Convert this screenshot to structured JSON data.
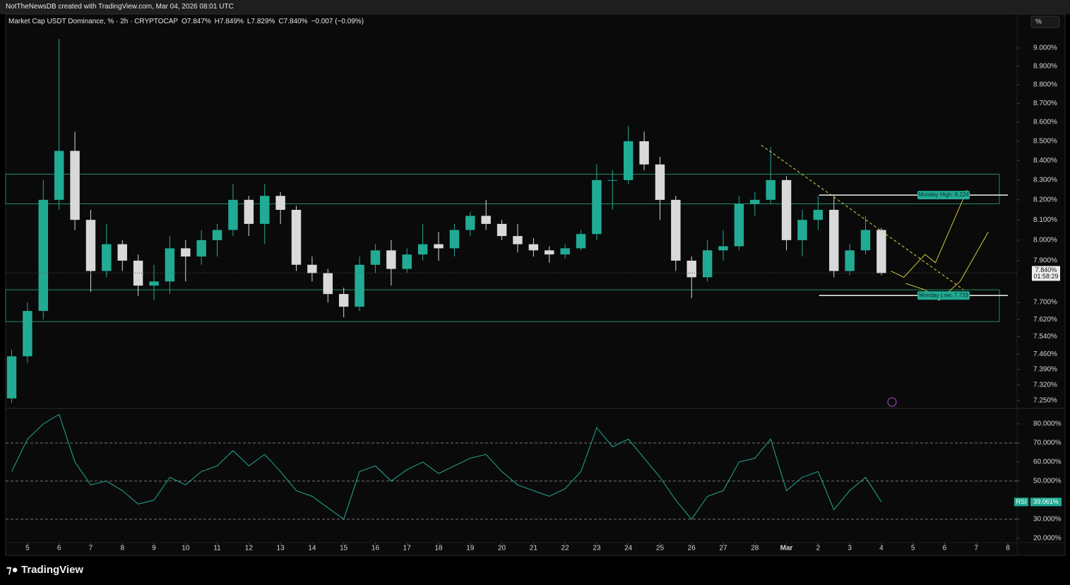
{
  "header": {
    "attribution": "NotTheNewsDB created with TradingView.com, Mar 04, 2026 08:01 UTC",
    "symbol": "Market Cap USDT Dominance, % · 2h · CRYPTOCAP",
    "open": "O7.847%",
    "high": "H7.849%",
    "low": "L7.829%",
    "close": "C7.840%",
    "change": "−0.007 (−0.09%)",
    "scale_unit": "%"
  },
  "footer": {
    "brand": "TradingView"
  },
  "chart_data": [
    {
      "type": "candlestick",
      "x": [
        4.5,
        5,
        5.5,
        6,
        6.5,
        7,
        7.5,
        8,
        8.5,
        9,
        9.5,
        10,
        10.5,
        11,
        11.5,
        12,
        12.5,
        13,
        13.5,
        14,
        14.5,
        15,
        15.5,
        16,
        16.5,
        17,
        17.5,
        18,
        18.5,
        19,
        19.5,
        20,
        20.5,
        21,
        21.5,
        22,
        22.5,
        23,
        23.5,
        24,
        24.5,
        25,
        25.5,
        26,
        26.5,
        27,
        27.5,
        28,
        28.5,
        29,
        29.5,
        30,
        30.5,
        31,
        31.5,
        32
      ],
      "open": [
        7.26,
        7.45,
        7.66,
        8.2,
        8.45,
        8.1,
        7.85,
        7.98,
        7.9,
        7.78,
        7.8,
        7.96,
        7.92,
        8.0,
        8.05,
        8.2,
        8.08,
        8.22,
        8.15,
        7.88,
        7.84,
        7.74,
        7.68,
        7.88,
        7.95,
        7.86,
        7.93,
        7.98,
        7.96,
        8.05,
        8.12,
        8.08,
        8.02,
        7.98,
        7.95,
        7.93,
        7.96,
        8.03,
        8.3,
        8.3,
        8.5,
        8.38,
        8.2,
        7.9,
        7.82,
        7.95,
        7.97,
        8.18,
        8.2,
        8.3,
        8.0,
        8.1,
        8.15,
        7.85,
        7.95,
        8.05
      ],
      "high": [
        7.48,
        7.7,
        8.3,
        9.05,
        8.55,
        8.15,
        8.08,
        8.0,
        7.93,
        7.88,
        8.02,
        8.0,
        8.05,
        8.08,
        8.28,
        8.22,
        8.28,
        8.24,
        8.17,
        7.92,
        7.86,
        7.77,
        7.92,
        7.98,
        8.0,
        7.96,
        8.08,
        8.04,
        8.08,
        8.14,
        8.2,
        8.1,
        8.08,
        8.01,
        7.97,
        7.98,
        8.05,
        8.38,
        8.35,
        8.58,
        8.55,
        8.42,
        8.22,
        7.92,
        8.0,
        8.05,
        8.22,
        8.24,
        8.47,
        8.32,
        8.15,
        8.22,
        8.22,
        7.98,
        8.12,
        8.06
      ],
      "low": [
        7.24,
        7.42,
        7.62,
        8.15,
        8.05,
        7.75,
        7.82,
        7.85,
        7.73,
        7.71,
        7.74,
        7.8,
        7.88,
        7.92,
        8.02,
        8.02,
        7.98,
        8.08,
        7.85,
        7.8,
        7.7,
        7.63,
        7.66,
        7.84,
        7.78,
        7.84,
        7.9,
        7.9,
        7.92,
        8.02,
        8.05,
        8.0,
        7.94,
        7.92,
        7.89,
        7.91,
        7.95,
        8.0,
        8.15,
        8.28,
        8.35,
        8.1,
        7.85,
        7.72,
        7.8,
        7.9,
        7.95,
        8.12,
        8.18,
        7.95,
        7.92,
        8.05,
        7.82,
        7.83,
        7.93,
        7.83
      ],
      "close": [
        7.45,
        7.66,
        8.2,
        8.45,
        8.1,
        7.85,
        7.98,
        7.9,
        7.78,
        7.8,
        7.96,
        7.92,
        8.0,
        8.05,
        8.2,
        8.08,
        8.22,
        8.15,
        7.88,
        7.84,
        7.74,
        7.68,
        7.88,
        7.95,
        7.86,
        7.93,
        7.98,
        7.96,
        8.05,
        8.12,
        8.08,
        8.02,
        7.98,
        7.95,
        7.93,
        7.96,
        8.03,
        8.3,
        8.3,
        8.5,
        8.38,
        8.2,
        7.9,
        7.82,
        7.95,
        7.97,
        8.18,
        8.2,
        8.3,
        8.0,
        8.1,
        8.15,
        7.85,
        7.95,
        8.05,
        7.84
      ],
      "up_color": "#22ab94",
      "down_color": "#d9d9d9",
      "log_scale": true,
      "xlim": [
        4.31,
        36.29
      ],
      "ylim": [
        7.219,
        9.189
      ],
      "xticks": [
        5,
        6,
        7,
        8,
        9,
        10,
        11,
        12,
        13,
        14,
        15,
        16,
        17,
        18,
        19,
        20,
        21,
        22,
        23,
        24,
        25,
        26,
        27,
        28,
        {
          "value": 29,
          "label": "Mar"
        },
        {
          "value": 30,
          "label": "2"
        },
        {
          "value": 31,
          "label": "3"
        },
        {
          "value": 32,
          "label": "4"
        },
        {
          "value": 33,
          "label": "5"
        },
        {
          "value": 34,
          "label": "6"
        },
        {
          "value": 35,
          "label": "7"
        },
        {
          "value": 36,
          "label": "8"
        }
      ],
      "yticks": [
        {
          "value": 9.0,
          "label": "9.000%"
        },
        {
          "value": 8.9,
          "label": "8.900%"
        },
        {
          "value": 8.8,
          "label": "8.800%"
        },
        {
          "value": 8.7,
          "label": "8.700%"
        },
        {
          "value": 8.6,
          "label": "8.600%"
        },
        {
          "value": 8.5,
          "label": "8.500%"
        },
        {
          "value": 8.4,
          "label": "8.400%"
        },
        {
          "value": 8.3,
          "label": "8.300%"
        },
        {
          "value": 8.2,
          "label": "8.200%"
        },
        {
          "value": 8.1,
          "label": "8.100%"
        },
        {
          "value": 8.0,
          "label": "8.000%"
        },
        {
          "value": 7.9,
          "label": "7.900%"
        },
        {
          "value": 7.7,
          "label": "7.700%"
        },
        {
          "value": 7.62,
          "label": "7.620%"
        },
        {
          "value": 7.54,
          "label": "7.540%"
        },
        {
          "value": 7.46,
          "label": "7.460%"
        },
        {
          "value": 7.39,
          "label": "7.390%"
        },
        {
          "value": 7.32,
          "label": "7.320%"
        },
        {
          "value": 7.25,
          "label": "7.250%"
        }
      ],
      "zone_color": "#1f8f6a",
      "zones": [
        {
          "from": 8.18,
          "to": 8.33
        },
        {
          "from": 7.61,
          "to": 7.76
        }
      ],
      "levels": [
        {
          "name": "Monday High: 8.224",
          "value": 8.224,
          "x": [
            30.03,
            36.0
          ]
        },
        {
          "name": "Monday Low: 7.733",
          "value": 7.733,
          "x": [
            30.03,
            36.0
          ]
        }
      ],
      "trendline": {
        "x": [
          28.2,
          34.6
        ],
        "y": [
          8.48,
          7.76
        ],
        "color": "#e8d44d"
      },
      "projection_color": "#d8c93a",
      "projections": [
        {
          "x": [
            32.3,
            32.71,
            33.38,
            33.71,
            34.71
          ],
          "y": [
            7.85,
            7.82,
            7.93,
            7.89,
            8.25
          ]
        },
        {
          "x": [
            32.77,
            33.38,
            33.82,
            34.49,
            35.38
          ],
          "y": [
            7.79,
            7.76,
            7.71,
            7.8,
            8.04
          ]
        }
      ],
      "last_price": {
        "value": 7.84,
        "label": "7.840%"
      },
      "countdown": "01:58:29"
    },
    {
      "type": "line",
      "name": "RSI",
      "color": "#22ab94",
      "values": [
        55,
        72,
        80,
        85,
        60,
        48,
        50,
        45,
        38,
        40,
        52,
        48,
        55,
        58,
        66,
        58,
        64,
        55,
        45,
        42,
        36,
        30,
        55,
        58,
        50,
        56,
        60,
        54,
        58,
        62,
        64,
        55,
        48,
        45,
        42,
        46,
        55,
        78,
        68,
        72,
        62,
        52,
        40,
        30,
        42,
        45,
        60,
        62,
        72,
        45,
        52,
        55,
        35,
        45,
        52,
        39.061
      ],
      "ylim": [
        18.1,
        87.4
      ],
      "yticks": [
        {
          "value": 80,
          "label": "80.000%"
        },
        {
          "value": 70,
          "label": "70.000%"
        },
        {
          "value": 60,
          "label": "60.000%"
        },
        {
          "value": 50,
          "label": "50.000%"
        },
        {
          "value": 30,
          "label": "30.000%"
        },
        {
          "value": 20,
          "label": "20.000%"
        }
      ],
      "dashed_levels": [
        70,
        50,
        30
      ],
      "last_label": {
        "value": 39.061,
        "label": "39.061%"
      }
    }
  ]
}
